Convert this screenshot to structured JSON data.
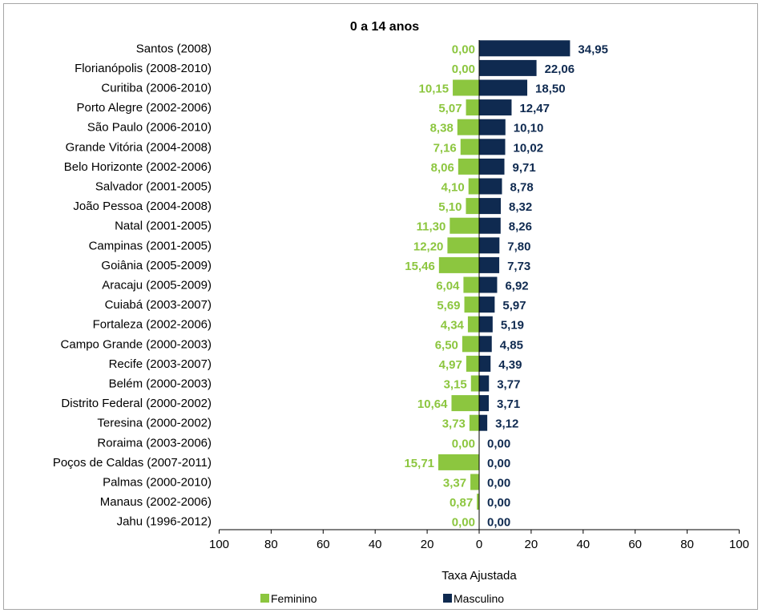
{
  "chart_data": {
    "type": "bar",
    "orientation": "horizontal-butterfly",
    "title": "0 a 14 anos",
    "xlabel": "Taxa Ajustada",
    "xlim": [
      -100,
      100
    ],
    "xticks": [
      "100",
      "80",
      "60",
      "40",
      "20",
      "0",
      "20",
      "40",
      "60",
      "80",
      "100"
    ],
    "legend_position": "bottom",
    "categories": [
      "Santos (2008)",
      "Florianópolis (2008-2010)",
      "Curitiba (2006-2010)",
      "Porto Alegre (2002-2006)",
      "São Paulo (2006-2010)",
      "Grande Vitória (2004-2008)",
      "Belo Horizonte (2002-2006)",
      "Salvador (2001-2005)",
      "João Pessoa (2004-2008)",
      "Natal (2001-2005)",
      "Campinas (2001-2005)",
      "Goiânia (2005-2009)",
      "Aracaju (2005-2009)",
      "Cuiabá (2003-2007)",
      "Fortaleza (2002-2006)",
      "Campo Grande (2000-2003)",
      "Recife (2003-2007)",
      "Belém (2000-2003)",
      "Distrito Federal (2000-2002)",
      "Teresina (2000-2002)",
      "Roraima (2003-2006)",
      "Poços de Caldas (2007-2011)",
      "Palmas (2000-2010)",
      "Manaus (2002-2006)",
      "Jahu (1996-2012)"
    ],
    "series": [
      {
        "name": "Feminino",
        "color": "#8cc63f",
        "values": [
          0.0,
          0.0,
          10.15,
          5.07,
          8.38,
          7.16,
          8.06,
          4.1,
          5.1,
          11.3,
          12.2,
          15.46,
          6.04,
          5.69,
          4.34,
          6.5,
          4.97,
          3.15,
          10.64,
          3.73,
          0.0,
          15.71,
          3.37,
          0.87,
          0.0
        ],
        "labels": [
          "0,00",
          "0,00",
          "10,15",
          "5,07",
          "8,38",
          "7,16",
          "8,06",
          "4,10",
          "5,10",
          "11,30",
          "12,20",
          "15,46",
          "6,04",
          "5,69",
          "4,34",
          "6,50",
          "4,97",
          "3,15",
          "10,64",
          "3,73",
          "0,00",
          "15,71",
          "3,37",
          "0,87",
          "0,00"
        ]
      },
      {
        "name": "Masculino",
        "color": "#0f2a50",
        "values": [
          34.95,
          22.06,
          18.5,
          12.47,
          10.1,
          10.02,
          9.71,
          8.78,
          8.32,
          8.26,
          7.8,
          7.73,
          6.92,
          5.97,
          5.19,
          4.85,
          4.39,
          3.77,
          3.71,
          3.12,
          0.0,
          0.0,
          0.0,
          0.0,
          0.0
        ],
        "labels": [
          "34,95",
          "22,06",
          "18,50",
          "12,47",
          "10,10",
          "10,02",
          "9,71",
          "8,78",
          "8,32",
          "8,26",
          "7,80",
          "7,73",
          "6,92",
          "5,97",
          "5,19",
          "4,85",
          "4,39",
          "3,77",
          "3,71",
          "3,12",
          "0,00",
          "0,00",
          "0,00",
          "0,00",
          "0,00"
        ]
      }
    ]
  }
}
